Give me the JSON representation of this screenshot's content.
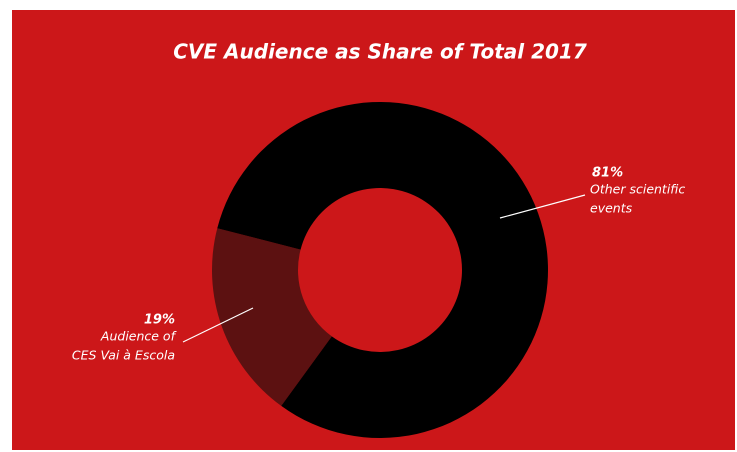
{
  "chart_data": {
    "type": "donut",
    "title": "CVE Audience as Share of Total 2017",
    "categories": [
      [
        "Audience of",
        "CES Vai à Escola"
      ],
      [
        "Other scientific",
        "events"
      ]
    ],
    "values": [
      19,
      81
    ],
    "value_labels": [
      "19%",
      "81%"
    ],
    "colors": [
      "#5c1111",
      "#000000"
    ],
    "background": "#cc1719"
  }
}
